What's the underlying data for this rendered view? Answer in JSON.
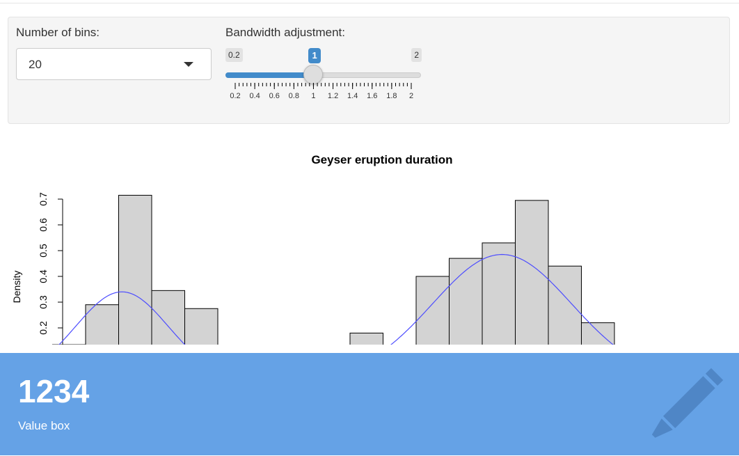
{
  "controls": {
    "bins_label": "Number of bins:",
    "bins_value": "20",
    "bandwidth_label": "Bandwidth adjustment:",
    "bandwidth": {
      "min": 0.2,
      "max": 2,
      "value": 1,
      "min_text": "0.2",
      "max_text": "2",
      "value_text": "1",
      "ticks": [
        "0.2",
        "0.4",
        "0.6",
        "0.8",
        "1",
        "1.2",
        "1.4",
        "1.6",
        "1.8",
        "2"
      ]
    }
  },
  "chart_data": {
    "type": "bar",
    "title": "Geyser eruption duration",
    "ylabel": "Density",
    "xlabel": "",
    "y_ticks": [
      0.2,
      0.3,
      0.4,
      0.5,
      0.6,
      0.7
    ],
    "ylim_visible": [
      0.135,
      0.72
    ],
    "bins": [
      {
        "x0": 1.6,
        "x1": 1.8,
        "value": 0.135
      },
      {
        "x0": 1.8,
        "x1": 2.0,
        "value": 0.29
      },
      {
        "x0": 2.0,
        "x1": 2.2,
        "value": 0.715
      },
      {
        "x0": 2.2,
        "x1": 2.4,
        "value": 0.345
      },
      {
        "x0": 2.4,
        "x1": 2.6,
        "value": 0.275
      },
      {
        "x0": 3.4,
        "x1": 3.6,
        "value": 0.18
      },
      {
        "x0": 3.8,
        "x1": 4.0,
        "value": 0.4
      },
      {
        "x0": 4.0,
        "x1": 4.2,
        "value": 0.47
      },
      {
        "x0": 4.2,
        "x1": 4.4,
        "value": 0.53
      },
      {
        "x0": 4.4,
        "x1": 4.6,
        "value": 0.695
      },
      {
        "x0": 4.6,
        "x1": 4.8,
        "value": 0.44
      },
      {
        "x0": 4.8,
        "x1": 5.0,
        "value": 0.22
      }
    ],
    "density_line_color": "#4d4dff",
    "bar_fill": "#d3d3d3"
  },
  "value_box": {
    "value": "1234",
    "subtitle": "Value box",
    "icon": "pencil-icon",
    "color": "#65a2e6"
  }
}
